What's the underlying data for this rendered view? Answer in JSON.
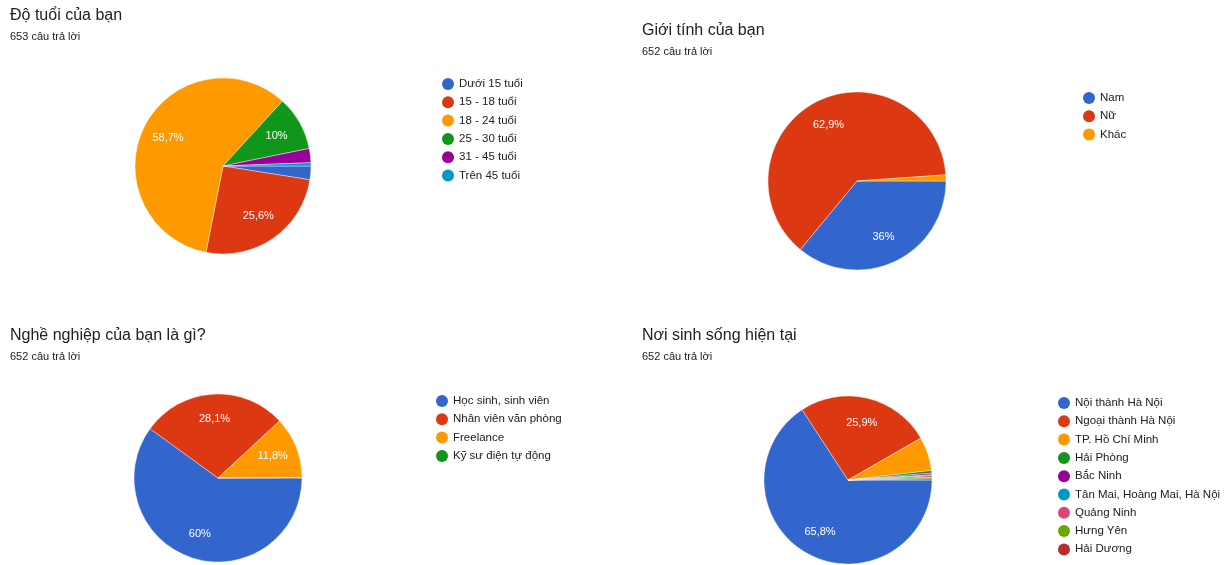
{
  "chart_data": [
    {
      "type": "pie",
      "title": "Độ tuổi của bạn",
      "subtitle": "653 câu trả lời",
      "categories": [
        "Dưới 15 tuổi",
        "15 - 18 tuổi",
        "18 - 24 tuổi",
        "25 - 30 tuổi",
        "31 - 45 tuổi",
        "Trên 45 tuổi"
      ],
      "values": [
        2.5,
        25.6,
        58.7,
        10,
        2.6,
        0.6
      ],
      "value_labels": [
        null,
        "25,6%",
        "58,7%",
        "10%",
        null,
        null
      ],
      "colors": [
        "#3366cc",
        "#dc3912",
        "#ff9900",
        "#109618",
        "#990099",
        "#0099c6"
      ],
      "legend": "right"
    },
    {
      "type": "pie",
      "title": "Giới tính của bạn",
      "subtitle": "652 câu trả lời",
      "categories": [
        "Nam",
        "Nữ",
        "Khác"
      ],
      "values": [
        36,
        62.9,
        1.1
      ],
      "value_labels": [
        "36%",
        "62,9%",
        null
      ],
      "colors": [
        "#3366cc",
        "#dc3912",
        "#ff9900"
      ],
      "legend": "right"
    },
    {
      "type": "pie",
      "title": "Nghề nghiệp của bạn là gì?",
      "subtitle": "652 câu trả lời",
      "categories": [
        "Học sinh, sinh viên",
        "Nhân viên văn phòng",
        "Freelance",
        "Kỹ sư điện tự động"
      ],
      "values": [
        60,
        28.1,
        11.8,
        0.1
      ],
      "value_labels": [
        "60%",
        "28,1%",
        "11,8%",
        null
      ],
      "colors": [
        "#3366cc",
        "#dc3912",
        "#ff9900",
        "#109618"
      ],
      "legend": "right"
    },
    {
      "type": "pie",
      "title": "Nơi sinh sống hiện tại",
      "subtitle": "652 câu trả lời",
      "categories": [
        "Nội thành Hà Nội",
        "Ngoại thành Hà Nội",
        "TP. Hồ Chí Minh",
        "Hải Phòng",
        "Bắc Ninh",
        "Tân Mai, Hoàng Mai, Hà Nội",
        "Quảng Ninh",
        "Hưng Yên",
        "Hải Dương"
      ],
      "values": [
        65.8,
        25.9,
        6.5,
        0.5,
        0.3,
        0.2,
        0.3,
        0.3,
        0.2
      ],
      "value_labels": [
        "65,8%",
        "25,9%",
        null,
        null,
        null,
        null,
        null,
        null,
        null
      ],
      "colors": [
        "#3366cc",
        "#dc3912",
        "#ff9900",
        "#109618",
        "#990099",
        "#0099c6",
        "#dd4477",
        "#66aa00",
        "#b82e2e"
      ],
      "legend": "right"
    }
  ]
}
